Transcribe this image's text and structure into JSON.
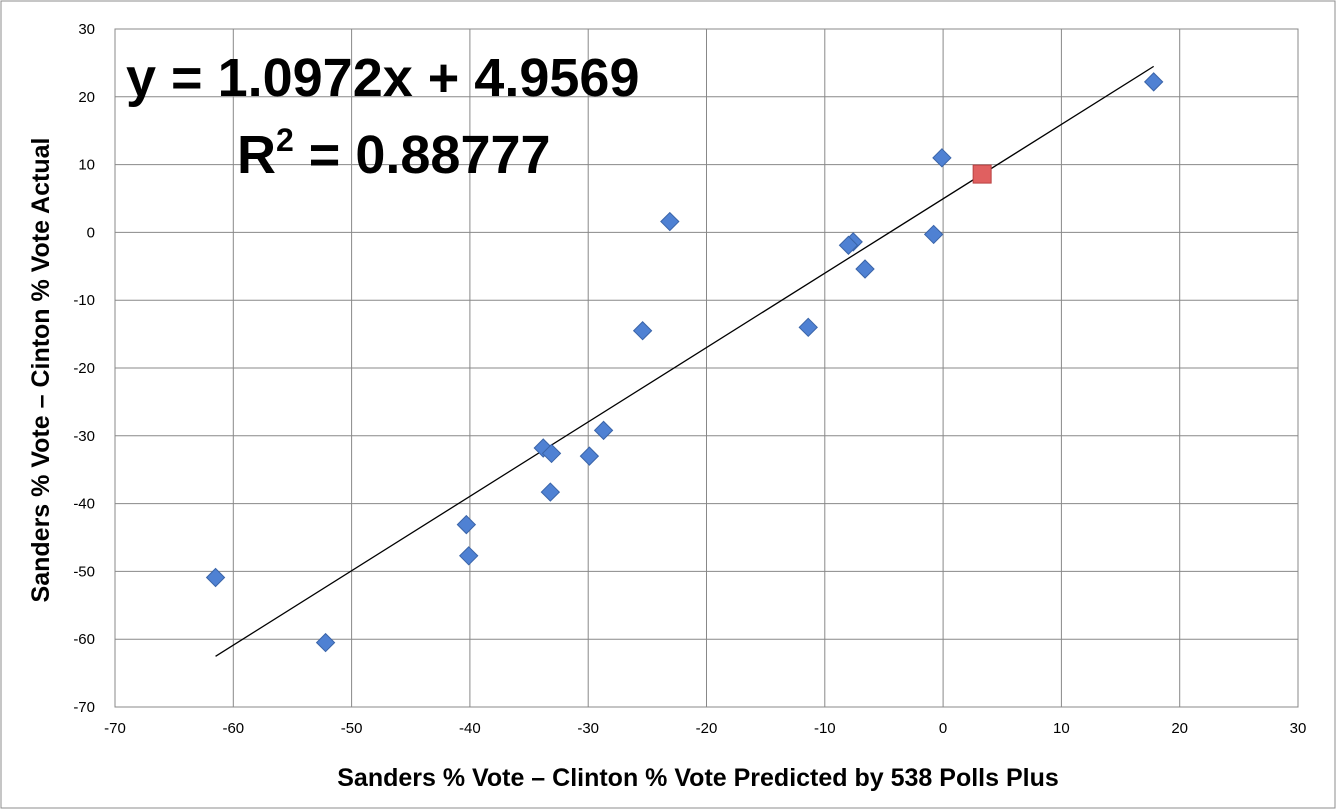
{
  "chart_data": {
    "type": "scatter",
    "xlabel": "Sanders % Vote – Clinton % Vote Predicted by 538 Polls Plus",
    "ylabel": "Sanders % Vote – Cinton % Vote Actual",
    "xlim": [
      -70,
      30
    ],
    "ylim": [
      -70,
      30
    ],
    "x_ticks": [
      -70,
      -60,
      -50,
      -40,
      -30,
      -20,
      -10,
      0,
      10,
      20,
      30
    ],
    "y_ticks": [
      -70,
      -60,
      -50,
      -40,
      -30,
      -20,
      -10,
      0,
      10,
      20,
      30
    ],
    "grid": true,
    "legend": "none",
    "annotations": {
      "equation": "y = 1.0972x + 4.9569",
      "r_squared_label": "R",
      "r_squared_exponent": "2",
      "r_squared_value": " = 0.88777"
    },
    "trendline": {
      "slope": 1.0972,
      "intercept": 4.9569,
      "x_range": [
        -61.5,
        17.8
      ],
      "color": "#000000"
    },
    "series": [
      {
        "marker": "diamond",
        "color": "#4f81d3",
        "points": [
          {
            "x": 17.8,
            "y": 22.2
          },
          {
            "x": -0.1,
            "y": 11.0
          },
          {
            "x": -23.1,
            "y": 1.6
          },
          {
            "x": -0.8,
            "y": -0.3
          },
          {
            "x": -7.6,
            "y": -1.4
          },
          {
            "x": -8.0,
            "y": -1.9
          },
          {
            "x": -6.6,
            "y": -5.4
          },
          {
            "x": -11.4,
            "y": -14.0
          },
          {
            "x": -25.4,
            "y": -14.5
          },
          {
            "x": -28.7,
            "y": -29.2
          },
          {
            "x": -33.8,
            "y": -31.8
          },
          {
            "x": -33.1,
            "y": -32.6
          },
          {
            "x": -29.9,
            "y": -33.0
          },
          {
            "x": -33.2,
            "y": -38.3
          },
          {
            "x": -40.3,
            "y": -43.1
          },
          {
            "x": -40.1,
            "y": -47.7
          },
          {
            "x": -61.5,
            "y": -50.9
          },
          {
            "x": -52.2,
            "y": -60.5
          }
        ]
      },
      {
        "marker": "square",
        "color": "#e06060",
        "points": [
          {
            "x": 3.3,
            "y": 8.6
          }
        ]
      }
    ]
  }
}
